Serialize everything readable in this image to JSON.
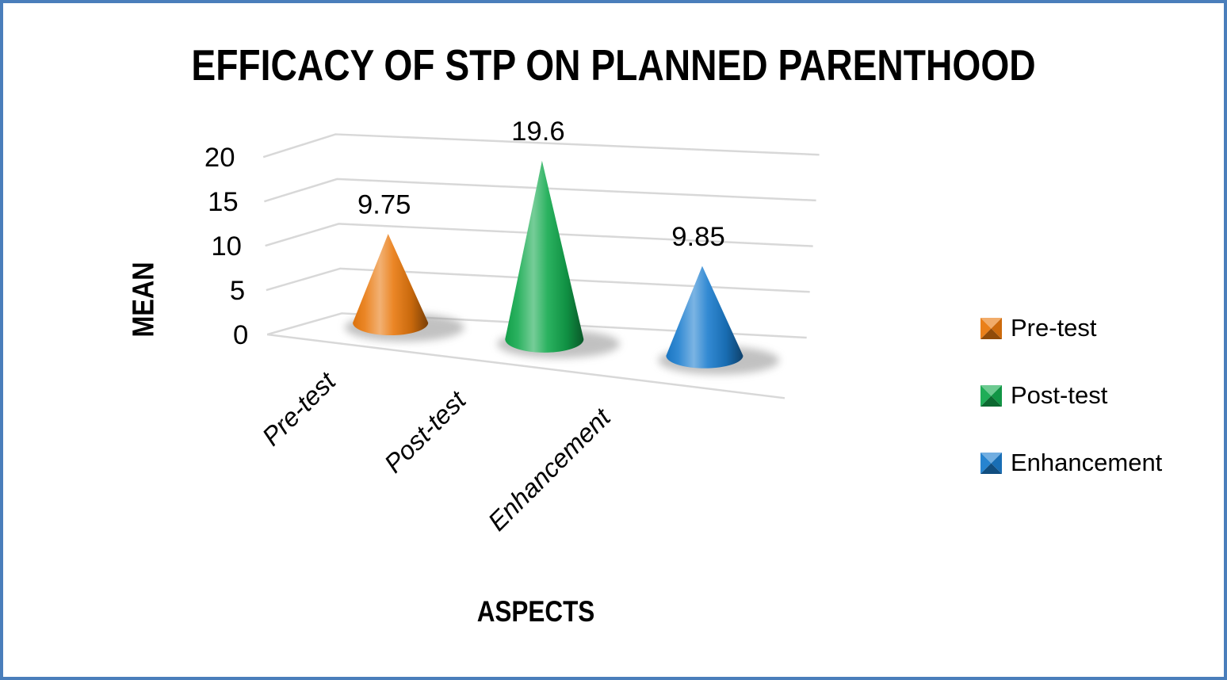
{
  "window": {
    "background": "#FFFFFF",
    "border_color": "#4A7EBB"
  },
  "chart_data": {
    "type": "bar",
    "subtype": "3d-cone",
    "title": "EFFICACY OF STP ON PLANNED PARENTHOOD",
    "xlabel": "ASPECTS",
    "ylabel": "MEAN",
    "categories": [
      "Pre-test",
      "Post-test",
      "Enhancement"
    ],
    "values": [
      9.75,
      19.6,
      9.85
    ],
    "data_labels": [
      "9.75",
      "19.6",
      "9.85"
    ],
    "ylim": [
      0,
      20
    ],
    "yticks": [
      0,
      5,
      10,
      15,
      20
    ],
    "grid": true,
    "gridline_color": "#D8D8D8",
    "legend_position": "right",
    "series_colors": [
      "#E9790E",
      "#13A94E",
      "#1C7DCE"
    ],
    "legend": [
      {
        "label": "Pre-test",
        "color": "#E9790E"
      },
      {
        "label": "Post-test",
        "color": "#13A94E"
      },
      {
        "label": "Enhancement",
        "color": "#1C7DCE"
      }
    ]
  }
}
